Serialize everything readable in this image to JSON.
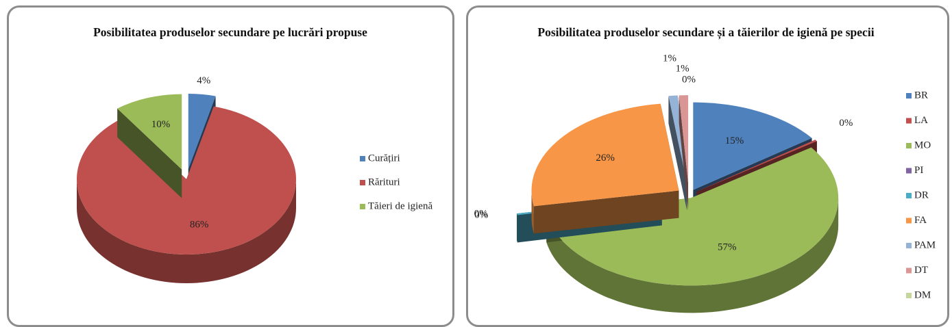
{
  "chart_data": [
    {
      "type": "pie",
      "title": "Posibilitatea produselor secundare pe lucrări propuse",
      "categories": [
        "Curățiri",
        "Rărituri",
        "Tăieri de igienă"
      ],
      "values": [
        4,
        86,
        10
      ],
      "value_labels": [
        "4%",
        "86%",
        "10%"
      ],
      "colors": [
        "#4f81bd",
        "#c0504d",
        "#9bbb59"
      ]
    },
    {
      "type": "pie",
      "title": "Posibilitatea produselor secundare și a tăierilor de igienă pe specii",
      "categories": [
        "BR",
        "LA",
        "MO",
        "PI",
        "DR",
        "FA",
        "PAM",
        "DT",
        "DM"
      ],
      "values": [
        15,
        0.3,
        57,
        0,
        0.3,
        26,
        1,
        1,
        0
      ],
      "value_labels": [
        "15%",
        "0%",
        "57%",
        "0%",
        "0%",
        "26%",
        "1%",
        "1%",
        "0%"
      ],
      "colors": [
        "#4f81bd",
        "#c0504d",
        "#9bbb59",
        "#8064a2",
        "#4bacc6",
        "#f79646",
        "#95b3d7",
        "#d99694",
        "#c3d69b"
      ]
    }
  ]
}
